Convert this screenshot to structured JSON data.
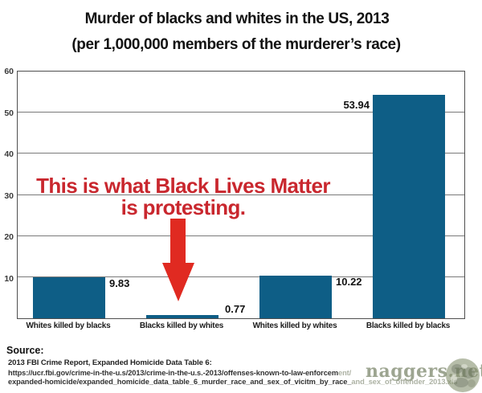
{
  "chart_data": {
    "type": "bar",
    "title": "Murder of blacks and whites in the US, 2013",
    "subtitle": "(per 1,000,000 members of the murderer’s race)",
    "categories": [
      "Whites killed by blacks",
      "Blacks killed by whites",
      "Whites killed by whites",
      "Blacks killed by blacks"
    ],
    "values": [
      9.83,
      0.77,
      10.22,
      53.94
    ],
    "value_labels": [
      "9.83",
      "0.77",
      "10.22",
      "53.94"
    ],
    "value_label_side": [
      "right",
      "right-above",
      "right",
      "left"
    ],
    "ylim": [
      0,
      60
    ],
    "yticks": [
      10,
      20,
      30,
      40,
      50,
      60
    ],
    "grid": true,
    "legend": "none",
    "bar_color": "#0e5e86",
    "axis_color": "#4f4f4f",
    "grid_color": "#7a7a7a"
  },
  "annotation": {
    "line1": "This is what Black Lives Matter",
    "line2": "is protesting.",
    "color": "#c9272e",
    "arrow_color": "#e02a21",
    "target_category": "Blacks killed by whites"
  },
  "source": {
    "heading": "Source:",
    "reference": "2013 FBI Crime Report, Expanded Homicide Data Table 6:",
    "url_line1_visible": "https://ucr.fbi.gov/crime-in-the-u.s/2013/crime-in-the-u.s.-2013/offenses-known-to-law-enforcem",
    "url_line1_faded": "ent/",
    "url_line2_visible": "expanded-homicide/expanded_homicide_data_table_6_murder_race_and_sex_of_vicitm_by_race_",
    "url_line2_faded": "and_sex_of_offender_2013.xls"
  },
  "watermark": {
    "text": "naggers.net",
    "color": "#8d967e"
  }
}
